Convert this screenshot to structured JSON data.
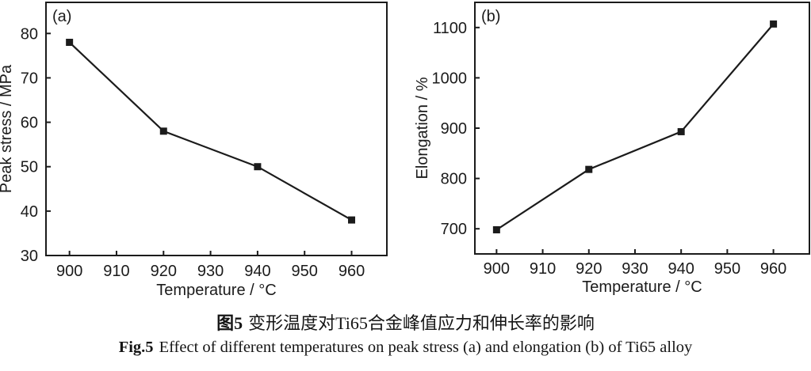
{
  "figure_caption": {
    "zh_prefix": "图5",
    "zh_text": "变形温度对Ti65合金峰值应力和伸长率的影响",
    "en_prefix": "Fig.5",
    "en_text": "Effect of different temperatures on peak stress (a) and elongation (b) of Ti65 alloy"
  },
  "colors": {
    "ink": "#1b1b1b",
    "background": "#ffffff"
  },
  "chart_data": [
    {
      "type": "line",
      "panel_label": "(a)",
      "x": [
        900,
        920,
        940,
        960
      ],
      "values": [
        78,
        58,
        50,
        38
      ],
      "series": [
        {
          "name": "Peak stress",
          "values": [
            78,
            58,
            50,
            38
          ]
        }
      ],
      "title": "",
      "xlabel": "Temperature / °C",
      "ylabel": "Peak stress / MPa",
      "xlim": [
        895,
        967.5
      ],
      "ylim": [
        30,
        87
      ],
      "xticks": [
        900,
        910,
        920,
        930,
        940,
        950,
        960
      ],
      "yticks": [
        30,
        40,
        50,
        60,
        70,
        80
      ],
      "grid": false,
      "legend": "none",
      "marker": "filled-square",
      "line_color": "#1b1b1b"
    },
    {
      "type": "line",
      "panel_label": "(b)",
      "x": [
        900,
        920,
        940,
        960
      ],
      "values": [
        698,
        818,
        893,
        1107
      ],
      "series": [
        {
          "name": "Elongation",
          "values": [
            698,
            818,
            893,
            1107
          ]
        }
      ],
      "title": "",
      "xlabel": "Temperature / °C",
      "ylabel": "Elongation / %",
      "xlim": [
        895.3,
        967.8
      ],
      "ylim": [
        650,
        1150
      ],
      "xticks": [
        900,
        910,
        920,
        930,
        940,
        950,
        960
      ],
      "yticks": [
        700,
        800,
        900,
        1000,
        1100
      ],
      "grid": false,
      "legend": "none",
      "marker": "filled-square",
      "line_color": "#1b1b1b"
    }
  ]
}
